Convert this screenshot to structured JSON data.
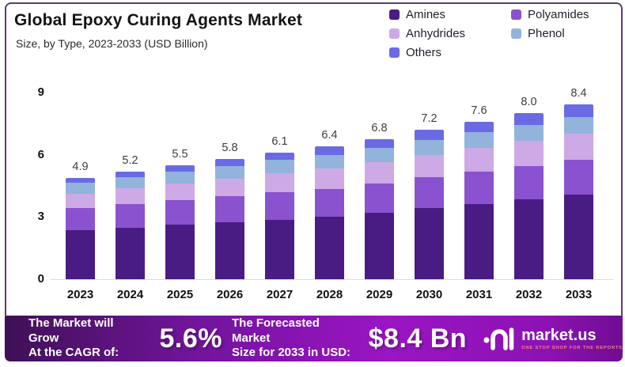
{
  "header": {
    "title": "Global Epoxy Curing Agents Market",
    "subtitle": "Size, by Type, 2023-2033 (USD Billion)"
  },
  "legend": [
    {
      "label": "Amines",
      "color": "#491C83"
    },
    {
      "label": "Polyamides",
      "color": "#8A52CE"
    },
    {
      "label": "Anhydrides",
      "color": "#CDA9E6"
    },
    {
      "label": "Phenol",
      "color": "#92B3DC"
    },
    {
      "label": "Others",
      "color": "#6A6AE4"
    }
  ],
  "chart_data": {
    "type": "bar",
    "stacked": true,
    "title": "Global Epoxy Curing Agents Market",
    "xlabel": "",
    "ylabel": "USD Billion",
    "ylim": [
      0,
      9
    ],
    "yticks": [
      0,
      3,
      6,
      9
    ],
    "grid": false,
    "legend_position": "top-right",
    "categories": [
      "2023",
      "2024",
      "2025",
      "2026",
      "2027",
      "2028",
      "2029",
      "2030",
      "2031",
      "2032",
      "2033"
    ],
    "totals": [
      4.9,
      5.2,
      5.5,
      5.8,
      6.1,
      6.4,
      6.8,
      7.2,
      7.6,
      8.0,
      8.4
    ],
    "series": [
      {
        "name": "Amines",
        "color": "#491C83",
        "values": [
          2.35,
          2.5,
          2.62,
          2.74,
          2.88,
          3.0,
          3.2,
          3.44,
          3.64,
          3.86,
          4.1
        ]
      },
      {
        "name": "Polyamides",
        "color": "#8A52CE",
        "values": [
          1.08,
          1.13,
          1.19,
          1.25,
          1.31,
          1.37,
          1.42,
          1.47,
          1.55,
          1.6,
          1.65
        ]
      },
      {
        "name": "Anhydrides",
        "color": "#CDA9E6",
        "values": [
          0.7,
          0.76,
          0.81,
          0.87,
          0.92,
          0.96,
          1.02,
          1.08,
          1.14,
          1.21,
          1.27
        ]
      },
      {
        "name": "Phenol",
        "color": "#92B3DC",
        "values": [
          0.52,
          0.55,
          0.58,
          0.61,
          0.64,
          0.67,
          0.7,
          0.73,
          0.76,
          0.78,
          0.8
        ]
      },
      {
        "name": "Others",
        "color": "#6A6AE4",
        "values": [
          0.25,
          0.27,
          0.3,
          0.33,
          0.36,
          0.4,
          0.44,
          0.48,
          0.52,
          0.57,
          0.62
        ]
      }
    ]
  },
  "banner": {
    "cagr_label_line1": "The Market will Grow",
    "cagr_label_line2": "At the CAGR of:",
    "cagr_value": "5.6%",
    "forecast_label_line1": "The Forecasted Market",
    "forecast_label_line2": "Size for 2033 in USD:",
    "forecast_value": "$8.4 Bn",
    "logo_text": "market.us",
    "logo_tagline": "ONE STOP SHOP FOR THE REPORTS"
  }
}
